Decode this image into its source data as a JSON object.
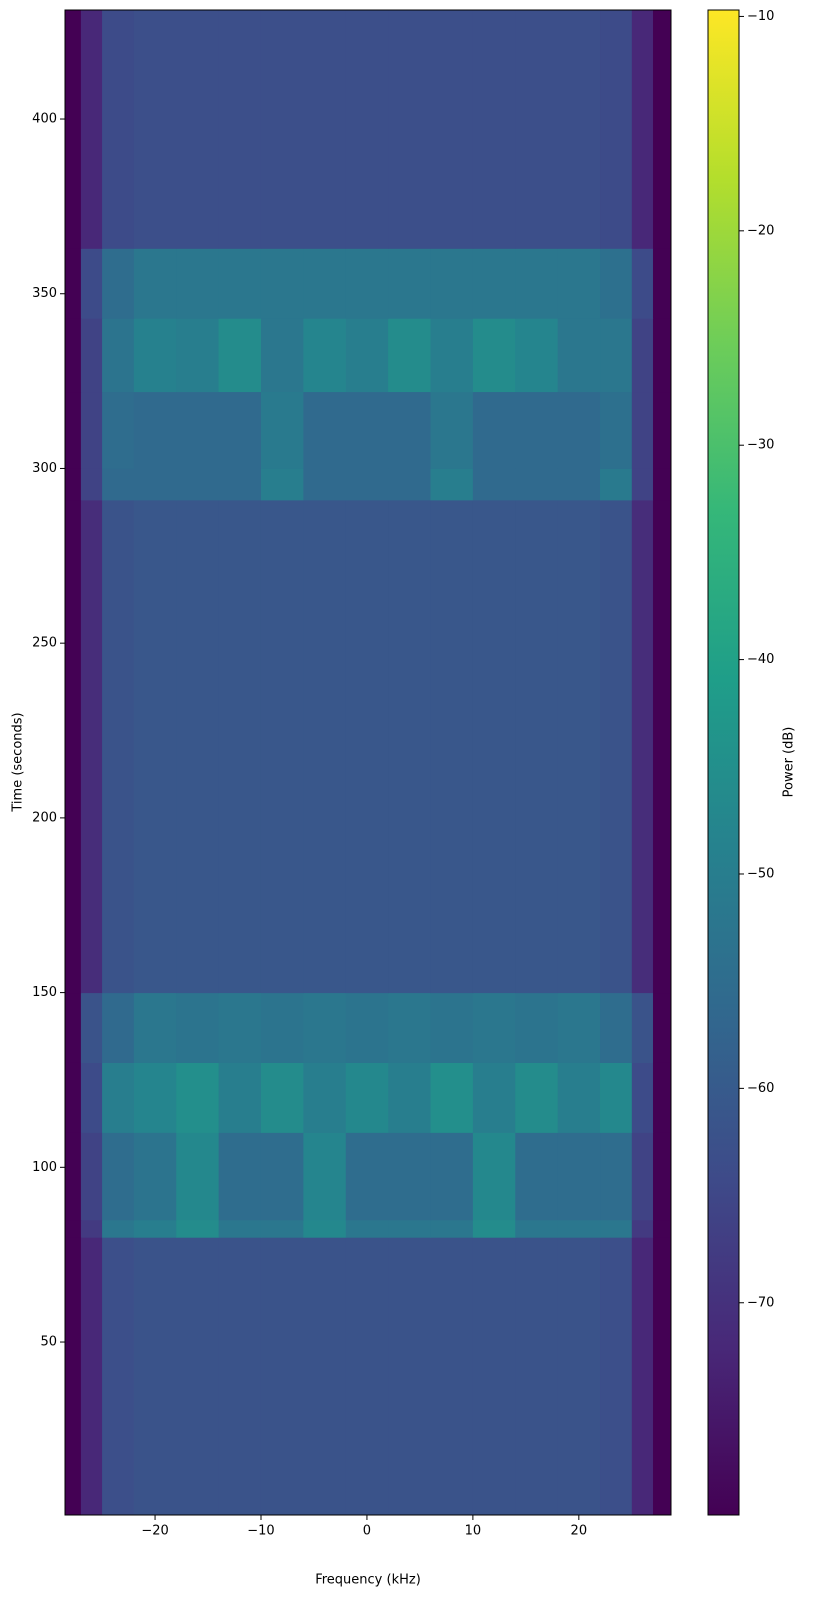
{
  "chart_data": {
    "type": "heatmap",
    "xlabel": "Frequency (kHz)",
    "ylabel": "Time (seconds)",
    "colorbar_label": "Power (dB)",
    "colormap": "viridis",
    "x_edges": [
      -28.5,
      -27,
      -25,
      -22,
      -18,
      -14,
      -10,
      -6,
      -2,
      2,
      6,
      10,
      14,
      18,
      22,
      25,
      27,
      28.7
    ],
    "y_edges": [
      0.5,
      80,
      85,
      110,
      130,
      150,
      291,
      300,
      322,
      343,
      363,
      431.2
    ],
    "values": [
      [
        -80,
        -72,
        -63,
        -62,
        -62,
        -62,
        -62,
        -62,
        -62,
        -62,
        -62,
        -62,
        -62,
        -62,
        -63,
        -72,
        -80
      ],
      [
        -80,
        -68,
        -52,
        -50,
        -46,
        -52,
        -52,
        -47,
        -52,
        -52,
        -52,
        -46,
        -52,
        -52,
        -52,
        -68,
        -80
      ],
      [
        -80,
        -66,
        -55,
        -53,
        -47,
        -55,
        -55,
        -48,
        -55,
        -55,
        -55,
        -47,
        -55,
        -55,
        -55,
        -66,
        -80
      ],
      [
        -80,
        -64,
        -50,
        -48,
        -45,
        -50,
        -46,
        -50,
        -47,
        -50,
        -45,
        -50,
        -46,
        -50,
        -47,
        -64,
        -80
      ],
      [
        -80,
        -62,
        -56,
        -52,
        -53,
        -52,
        -53,
        -52,
        -53,
        -52,
        -53,
        -52,
        -53,
        -52,
        -55,
        -62,
        -80
      ],
      [
        -80,
        -71,
        -62,
        -61,
        -61,
        -61,
        -61,
        -61,
        -61,
        -61,
        -61,
        -61,
        -61,
        -61,
        -62,
        -71,
        -80
      ],
      [
        -80,
        -66,
        -56,
        -56,
        -56,
        -56,
        -50,
        -56,
        -56,
        -56,
        -50,
        -56,
        -56,
        -56,
        -51,
        -66,
        -80
      ],
      [
        -80,
        -66,
        -55,
        -56,
        -56,
        -56,
        -51,
        -56,
        -56,
        -56,
        -52,
        -56,
        -56,
        -56,
        -54,
        -66,
        -80
      ],
      [
        -80,
        -66,
        -53,
        -49,
        -50,
        -46,
        -52,
        -48,
        -50,
        -46,
        -50,
        -46,
        -48,
        -52,
        -52,
        -66,
        -80
      ],
      [
        -80,
        -64,
        -55,
        -52,
        -52,
        -52,
        -52,
        -52,
        -52,
        -52,
        -52,
        -52,
        -52,
        -52,
        -54,
        -64,
        -80
      ],
      [
        -80,
        -72,
        -64,
        -63,
        -63,
        -63,
        -63,
        -63,
        -63,
        -63,
        -63,
        -63,
        -63,
        -63,
        -64,
        -72,
        -80
      ]
    ],
    "xlim": [
      -28.5,
      28.7
    ],
    "xticks": [
      {
        "value": -20,
        "label": "−20"
      },
      {
        "value": -10,
        "label": "−10"
      },
      0,
      10,
      20
    ],
    "ylim": [
      0.5,
      431.2
    ],
    "yticks": [
      50,
      100,
      150,
      200,
      250,
      300,
      350,
      400
    ],
    "clim": [
      -79.9,
      -9.7
    ],
    "cticks": [
      {
        "value": -70,
        "label": "−70"
      },
      {
        "value": -60,
        "label": "−60"
      },
      {
        "value": -50,
        "label": "−50"
      },
      {
        "value": -40,
        "label": "−40"
      },
      {
        "value": -30,
        "label": "−30"
      },
      {
        "value": -20,
        "label": "−20"
      },
      {
        "value": -10,
        "label": "−10"
      }
    ]
  }
}
